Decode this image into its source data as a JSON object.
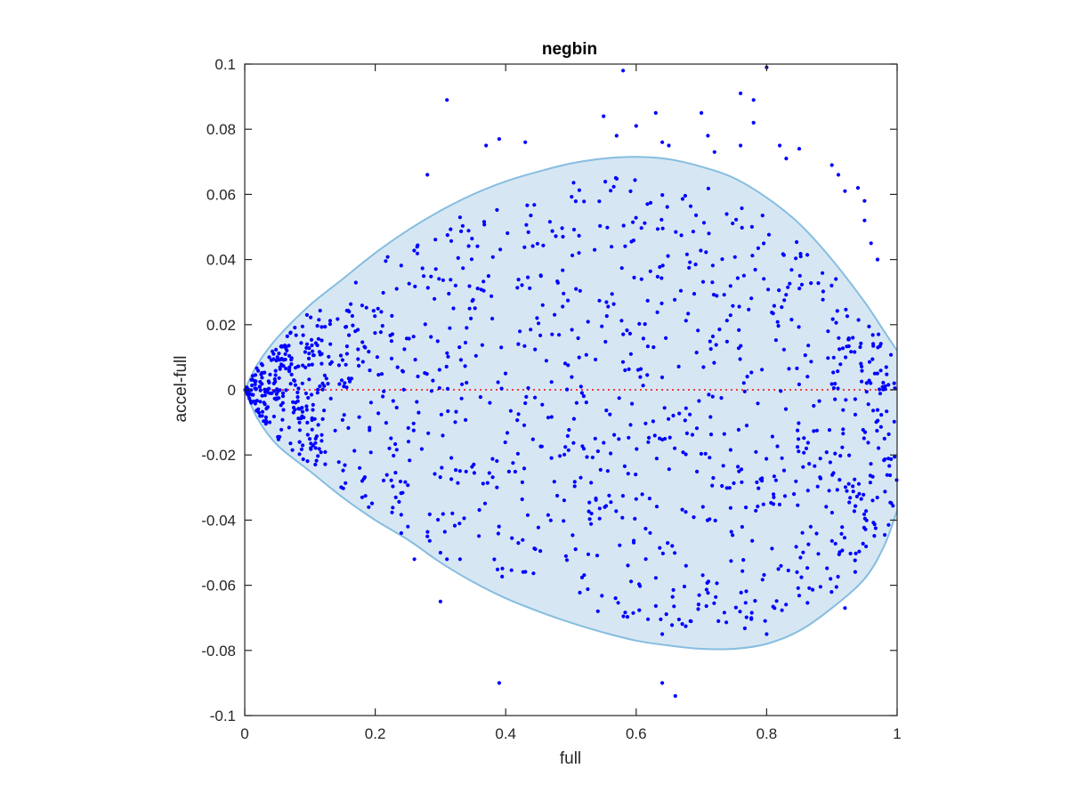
{
  "chart_data": {
    "type": "scatter",
    "title": "negbin",
    "xlabel": "full",
    "ylabel": "accel-full",
    "xlim": [
      0,
      1
    ],
    "ylim": [
      -0.1,
      0.1
    ],
    "xticks": [
      0,
      0.2,
      0.4,
      0.6,
      0.8,
      1
    ],
    "xtick_labels": [
      "0",
      "0.2",
      "0.4",
      "0.6",
      "0.8",
      "1"
    ],
    "yticks": [
      -0.1,
      -0.08,
      -0.06,
      -0.04,
      -0.02,
      0,
      0.02,
      0.04,
      0.06,
      0.08,
      0.1
    ],
    "ytick_labels": [
      "-0.1",
      "-0.08",
      "-0.06",
      "-0.04",
      "-0.02",
      "0",
      "0.02",
      "0.04",
      "0.06",
      "0.08",
      "0.1"
    ],
    "grid": false,
    "colors": {
      "points": "#0000ff",
      "band_fill": "#d6e7f3",
      "band_edge": "#86bde0",
      "zero_line": "#ff0000"
    },
    "reference_line": {
      "y": 0,
      "style": "dotted"
    },
    "band": {
      "upper": [
        [
          0,
          0
        ],
        [
          0.02,
          0.008
        ],
        [
          0.05,
          0.016
        ],
        [
          0.1,
          0.026
        ],
        [
          0.15,
          0.034
        ],
        [
          0.2,
          0.042
        ],
        [
          0.25,
          0.049
        ],
        [
          0.3,
          0.055
        ],
        [
          0.35,
          0.06
        ],
        [
          0.4,
          0.064
        ],
        [
          0.45,
          0.067
        ],
        [
          0.5,
          0.0695
        ],
        [
          0.55,
          0.071
        ],
        [
          0.6,
          0.0715
        ],
        [
          0.65,
          0.0708
        ],
        [
          0.7,
          0.0685
        ],
        [
          0.75,
          0.065
        ],
        [
          0.8,
          0.059
        ],
        [
          0.85,
          0.051
        ],
        [
          0.9,
          0.04
        ],
        [
          0.95,
          0.027
        ],
        [
          0.98,
          0.018
        ],
        [
          1,
          0.012
        ]
      ],
      "lower": [
        [
          0,
          0
        ],
        [
          0.02,
          -0.009
        ],
        [
          0.05,
          -0.017
        ],
        [
          0.1,
          -0.025
        ],
        [
          0.15,
          -0.033
        ],
        [
          0.2,
          -0.04
        ],
        [
          0.25,
          -0.046
        ],
        [
          0.3,
          -0.053
        ],
        [
          0.35,
          -0.059
        ],
        [
          0.4,
          -0.064
        ],
        [
          0.45,
          -0.068
        ],
        [
          0.5,
          -0.0715
        ],
        [
          0.55,
          -0.0745
        ],
        [
          0.6,
          -0.077
        ],
        [
          0.65,
          -0.0785
        ],
        [
          0.7,
          -0.0795
        ],
        [
          0.75,
          -0.0795
        ],
        [
          0.8,
          -0.078
        ],
        [
          0.85,
          -0.074
        ],
        [
          0.9,
          -0.067
        ],
        [
          0.95,
          -0.058
        ],
        [
          0.98,
          -0.048
        ],
        [
          1,
          -0.037
        ]
      ]
    },
    "outliers": [
      [
        0.31,
        0.089
      ],
      [
        0.58,
        0.098
      ],
      [
        0.8,
        0.099
      ],
      [
        0.76,
        0.091
      ],
      [
        0.78,
        0.089
      ],
      [
        0.63,
        0.085
      ],
      [
        0.55,
        0.084
      ],
      [
        0.7,
        0.085
      ],
      [
        0.78,
        0.082
      ],
      [
        0.6,
        0.081
      ],
      [
        0.39,
        0.077
      ],
      [
        0.43,
        0.076
      ],
      [
        0.37,
        0.075
      ],
      [
        0.64,
        0.076
      ],
      [
        0.65,
        0.075
      ],
      [
        0.71,
        0.078
      ],
      [
        0.72,
        0.073
      ],
      [
        0.76,
        0.075
      ],
      [
        0.82,
        0.075
      ],
      [
        0.83,
        0.071
      ],
      [
        0.9,
        0.069
      ],
      [
        0.91,
        0.066
      ],
      [
        0.85,
        0.074
      ],
      [
        0.57,
        0.078
      ],
      [
        0.28,
        0.066
      ],
      [
        0.94,
        0.062
      ],
      [
        0.95,
        0.058
      ],
      [
        0.95,
        0.052
      ],
      [
        0.92,
        0.061
      ],
      [
        0.96,
        0.045
      ],
      [
        0.97,
        0.04
      ],
      [
        0.39,
        -0.09
      ],
      [
        0.64,
        -0.09
      ],
      [
        0.66,
        -0.094
      ],
      [
        0.3,
        -0.065
      ],
      [
        0.64,
        -0.075
      ],
      [
        0.8,
        -0.075
      ],
      [
        0.92,
        -0.067
      ],
      [
        0.26,
        -0.052
      ],
      [
        0.24,
        -0.044
      ],
      [
        0.28,
        -0.045
      ],
      [
        0.3,
        -0.05
      ],
      [
        0.31,
        -0.052
      ],
      [
        0.33,
        -0.052
      ],
      [
        0.25,
        -0.042
      ],
      [
        0.19,
        -0.036
      ],
      [
        0.18,
        -0.033
      ]
    ]
  }
}
